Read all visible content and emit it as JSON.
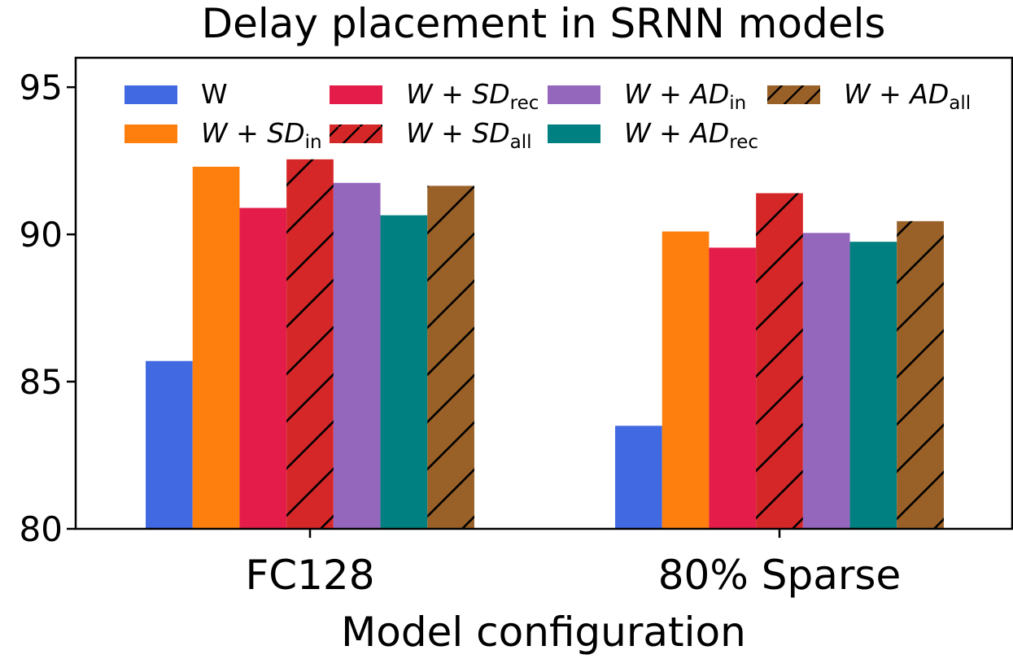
{
  "chart_data": {
    "type": "bar",
    "title": "Delay placement in SRNN models",
    "xlabel": "Model configuration",
    "ylabel": "",
    "ylim": [
      80,
      96
    ],
    "yticks": [
      80,
      85,
      90,
      95
    ],
    "ytick_labels": [
      "80",
      "85",
      "90",
      "95"
    ],
    "categories": [
      "FC128",
      "80% Sparse"
    ],
    "legend_position": "top",
    "series": [
      {
        "name": "W",
        "label": {
          "base": "W",
          "sub": ""
        },
        "color": "#4169e1",
        "hatch": false,
        "values": [
          85.7,
          83.5
        ]
      },
      {
        "name": "W + SD_in",
        "label": {
          "base": "W + SD",
          "sub": "in"
        },
        "color": "#ff7f0e",
        "hatch": false,
        "values": [
          92.3,
          90.1
        ]
      },
      {
        "name": "W + SD_rec",
        "label": {
          "base": "W + SD",
          "sub": "rec"
        },
        "color": "#e31c4a",
        "hatch": false,
        "values": [
          90.9,
          89.55
        ]
      },
      {
        "name": "W + SD_all",
        "label": {
          "base": "W + SD",
          "sub": "all"
        },
        "color": "#d62728",
        "hatch": true,
        "values": [
          92.55,
          91.4
        ]
      },
      {
        "name": "W + AD_in",
        "label": {
          "base": "W + AD",
          "sub": "in"
        },
        "color": "#9467bd",
        "hatch": false,
        "values": [
          91.75,
          90.05
        ]
      },
      {
        "name": "W + AD_rec",
        "label": {
          "base": "W + AD",
          "sub": "rec"
        },
        "color": "#008080",
        "hatch": false,
        "values": [
          90.65,
          89.75
        ]
      },
      {
        "name": "W + AD_all",
        "label": {
          "base": "W + AD",
          "sub": "all"
        },
        "color": "#996127",
        "hatch": true,
        "values": [
          91.65,
          90.45
        ]
      }
    ]
  }
}
